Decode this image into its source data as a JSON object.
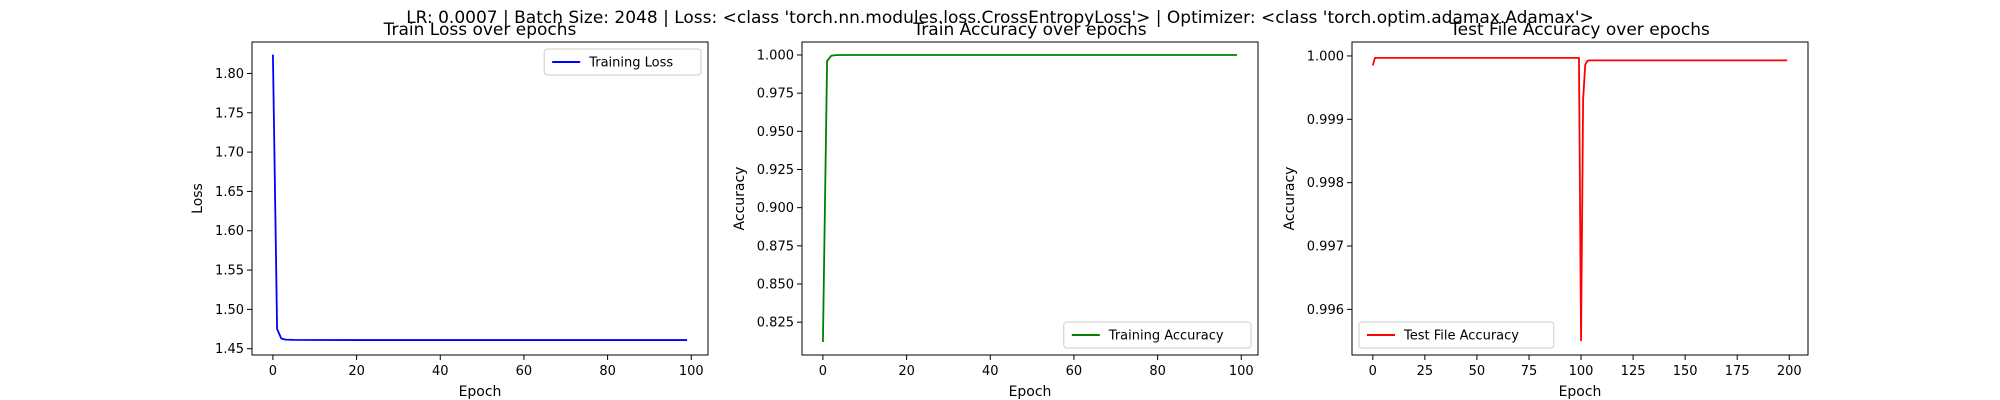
{
  "figure": {
    "suptitle": "LR: 0.0007 | Batch Size: 2048 | Loss: <class 'torch.nn.modules.loss.CrossEntropyLoss'> | Optimizer: <class 'torch.optim.adamax.Adamax'>"
  },
  "chart_data": [
    {
      "type": "line",
      "title": "Train Loss over epochs",
      "xlabel": "Epoch",
      "ylabel": "Loss",
      "xlim": [
        -5,
        104
      ],
      "ylim": [
        1.442,
        1.84
      ],
      "xticks": [
        0,
        20,
        40,
        60,
        80,
        100
      ],
      "yticks": [
        1.45,
        1.5,
        1.55,
        1.6,
        1.65,
        1.7,
        1.75,
        1.8
      ],
      "ytick_labels": [
        "1.45",
        "1.50",
        "1.55",
        "1.60",
        "1.65",
        "1.70",
        "1.75",
        "1.80"
      ],
      "grid": false,
      "legend_position": "upper right",
      "series": [
        {
          "name": "Training Loss",
          "color": "#0000ff",
          "x": [
            0,
            1,
            2,
            3,
            5,
            10,
            20,
            40,
            60,
            80,
            99
          ],
          "y": [
            1.824,
            1.475,
            1.463,
            1.4615,
            1.4612,
            1.4611,
            1.461,
            1.461,
            1.461,
            1.461,
            1.461
          ]
        }
      ]
    },
    {
      "type": "line",
      "title": "Train Accuracy over epochs",
      "xlabel": "Epoch",
      "ylabel": "Accuracy",
      "xlim": [
        -5,
        104
      ],
      "ylim": [
        0.8035,
        1.0085
      ],
      "xticks": [
        0,
        20,
        40,
        60,
        80,
        100
      ],
      "yticks": [
        0.825,
        0.85,
        0.875,
        0.9,
        0.925,
        0.95,
        0.975,
        1.0
      ],
      "ytick_labels": [
        "0.825",
        "0.850",
        "0.875",
        "0.900",
        "0.925",
        "0.950",
        "0.975",
        "1.000"
      ],
      "grid": false,
      "legend_position": "lower right",
      "series": [
        {
          "name": "Training Accuracy",
          "color": "#008000",
          "x": [
            0,
            1,
            2,
            3,
            5,
            10,
            20,
            40,
            60,
            80,
            99
          ],
          "y": [
            0.812,
            0.996,
            0.9995,
            0.9999,
            1.0,
            1.0,
            1.0,
            1.0,
            1.0,
            1.0,
            1.0
          ]
        }
      ]
    },
    {
      "type": "line",
      "title": "Test File Accuracy over epochs",
      "xlabel": "Epoch",
      "ylabel": "Accuracy",
      "xlim": [
        -10,
        209
      ],
      "ylim": [
        0.99528,
        1.00022
      ],
      "xticks": [
        0,
        25,
        50,
        75,
        100,
        125,
        150,
        175,
        200
      ],
      "yticks": [
        0.996,
        0.997,
        0.998,
        0.999,
        1.0
      ],
      "ytick_labels": [
        "0.996",
        "0.997",
        "0.998",
        "0.999",
        "1.000"
      ],
      "grid": false,
      "legend_position": "lower left",
      "series": [
        {
          "name": "Test File Accuracy",
          "color": "#ff0000",
          "x": [
            0,
            1,
            2,
            10,
            30,
            50,
            70,
            90,
            99,
            100,
            101,
            102,
            103,
            104,
            110,
            150,
            199
          ],
          "y": [
            0.99985,
            0.99997,
            0.99997,
            0.99997,
            0.99997,
            0.99997,
            0.99997,
            0.99997,
            0.99997,
            0.99551,
            0.99931,
            0.99986,
            0.99992,
            0.99993,
            0.99993,
            0.99993,
            0.99993
          ]
        }
      ]
    }
  ]
}
